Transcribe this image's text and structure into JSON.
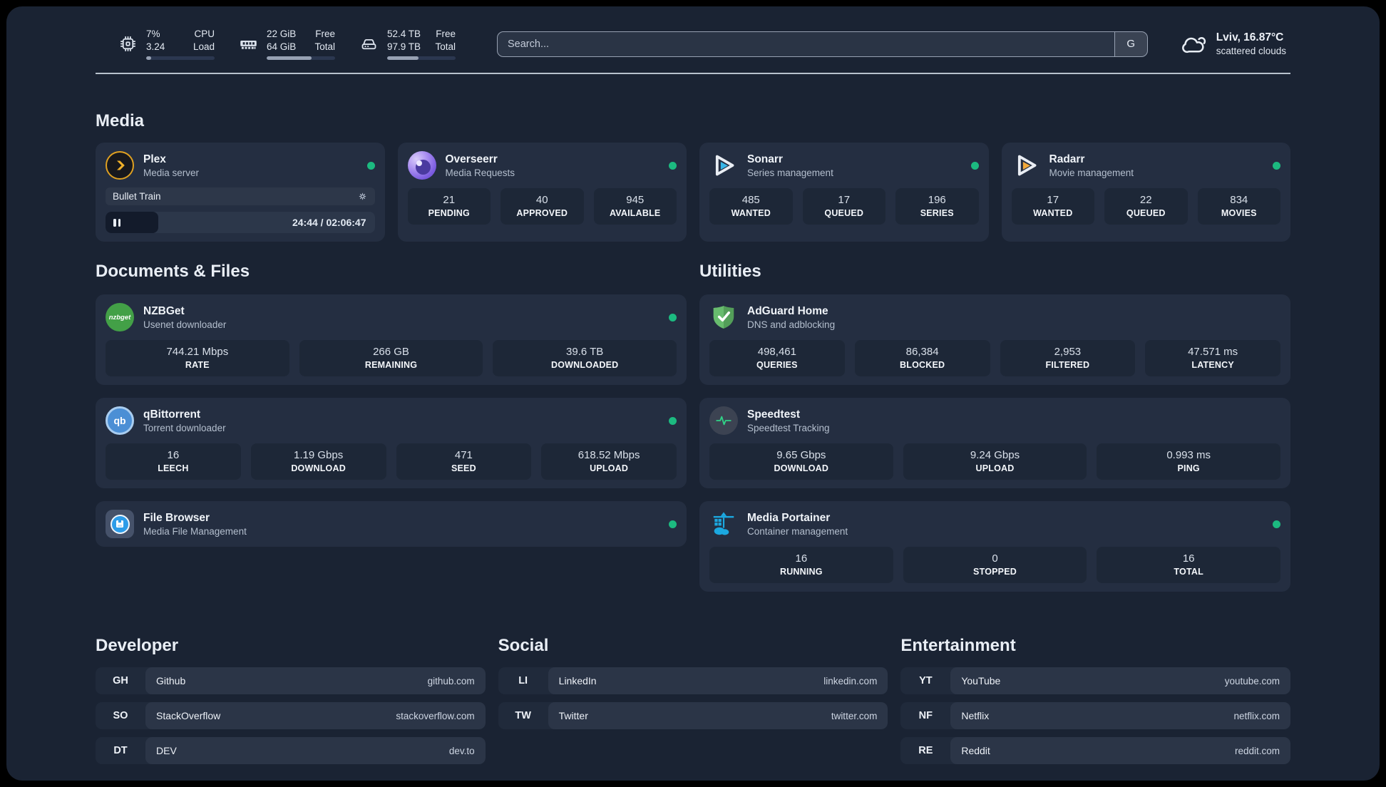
{
  "topbar": {
    "metrics": [
      {
        "name": "cpu",
        "values": [
          "7%",
          "3.24"
        ],
        "labels": [
          "CPU",
          "Load"
        ],
        "progress": 7
      },
      {
        "name": "memory",
        "values": [
          "22 GiB",
          "64 GiB"
        ],
        "labels": [
          "Free",
          "Total"
        ],
        "progress": 66
      },
      {
        "name": "disk",
        "values": [
          "52.4 TB",
          "97.9 TB"
        ],
        "labels": [
          "Free",
          "Total"
        ],
        "progress": 46
      }
    ],
    "search": {
      "placeholder": "Search...",
      "engine_button": "G"
    },
    "weather": {
      "location_temperature": "Lviv, 16.87°C",
      "condition": "scattered clouds"
    }
  },
  "media": {
    "title": "Media",
    "plex": {
      "name": "Plex",
      "subtitle": "Media server",
      "now_playing": "Bullet Train",
      "time": "24:44 / 02:06:47",
      "progress": 19.5
    },
    "overseerr": {
      "name": "Overseerr",
      "subtitle": "Media Requests",
      "stats": [
        {
          "value": "21",
          "label": "PENDING"
        },
        {
          "value": "40",
          "label": "APPROVED"
        },
        {
          "value": "945",
          "label": "AVAILABLE"
        }
      ]
    },
    "sonarr": {
      "name": "Sonarr",
      "subtitle": "Series management",
      "stats": [
        {
          "value": "485",
          "label": "WANTED"
        },
        {
          "value": "17",
          "label": "QUEUED"
        },
        {
          "value": "196",
          "label": "SERIES"
        }
      ]
    },
    "radarr": {
      "name": "Radarr",
      "subtitle": "Movie management",
      "stats": [
        {
          "value": "17",
          "label": "WANTED"
        },
        {
          "value": "22",
          "label": "QUEUED"
        },
        {
          "value": "834",
          "label": "MOVIES"
        }
      ]
    }
  },
  "documents": {
    "title": "Documents & Files",
    "nzbget": {
      "name": "NZBGet",
      "subtitle": "Usenet downloader",
      "icon_text": "nzbget",
      "stats": [
        {
          "value": "744.21 Mbps",
          "label": "RATE"
        },
        {
          "value": "266 GB",
          "label": "REMAINING"
        },
        {
          "value": "39.6 TB",
          "label": "DOWNLOADED"
        }
      ]
    },
    "qbittorrent": {
      "name": "qBittorrent",
      "subtitle": "Torrent downloader",
      "icon_text": "qb",
      "stats": [
        {
          "value": "16",
          "label": "LEECH"
        },
        {
          "value": "1.19 Gbps",
          "label": "DOWNLOAD"
        },
        {
          "value": "471",
          "label": "SEED"
        },
        {
          "value": "618.52 Mbps",
          "label": "UPLOAD"
        }
      ]
    },
    "filebrowser": {
      "name": "File Browser",
      "subtitle": "Media File Management"
    }
  },
  "utilities": {
    "title": "Utilities",
    "adguard": {
      "name": "AdGuard Home",
      "subtitle": "DNS and adblocking",
      "stats": [
        {
          "value": "498,461",
          "label": "QUERIES"
        },
        {
          "value": "86,384",
          "label": "BLOCKED"
        },
        {
          "value": "2,953",
          "label": "FILTERED"
        },
        {
          "value": "47.571 ms",
          "label": "LATENCY"
        }
      ]
    },
    "speedtest": {
      "name": "Speedtest",
      "subtitle": "Speedtest Tracking",
      "stats": [
        {
          "value": "9.65 Gbps",
          "label": "DOWNLOAD"
        },
        {
          "value": "9.24 Gbps",
          "label": "UPLOAD"
        },
        {
          "value": "0.993 ms",
          "label": "PING"
        }
      ]
    },
    "portainer": {
      "name": "Media Portainer",
      "subtitle": "Container management",
      "stats": [
        {
          "value": "16",
          "label": "RUNNING"
        },
        {
          "value": "0",
          "label": "STOPPED"
        },
        {
          "value": "16",
          "label": "TOTAL"
        }
      ]
    }
  },
  "bookmarks": {
    "developer": {
      "title": "Developer",
      "items": [
        {
          "abbr": "GH",
          "name": "Github",
          "url": "github.com"
        },
        {
          "abbr": "SO",
          "name": "StackOverflow",
          "url": "stackoverflow.com"
        },
        {
          "abbr": "DT",
          "name": "DEV",
          "url": "dev.to"
        }
      ]
    },
    "social": {
      "title": "Social",
      "items": [
        {
          "abbr": "LI",
          "name": "LinkedIn",
          "url": "linkedin.com"
        },
        {
          "abbr": "TW",
          "name": "Twitter",
          "url": "twitter.com"
        }
      ]
    },
    "entertainment": {
      "title": "Entertainment",
      "items": [
        {
          "abbr": "YT",
          "name": "YouTube",
          "url": "youtube.com"
        },
        {
          "abbr": "NF",
          "name": "Netflix",
          "url": "netflix.com"
        },
        {
          "abbr": "RE",
          "name": "Reddit",
          "url": "reddit.com"
        }
      ]
    }
  },
  "colors": {
    "status_online": "#1cba80",
    "plex_accent": "#dfa021",
    "background": "#1a2333",
    "card": "#242e41"
  }
}
